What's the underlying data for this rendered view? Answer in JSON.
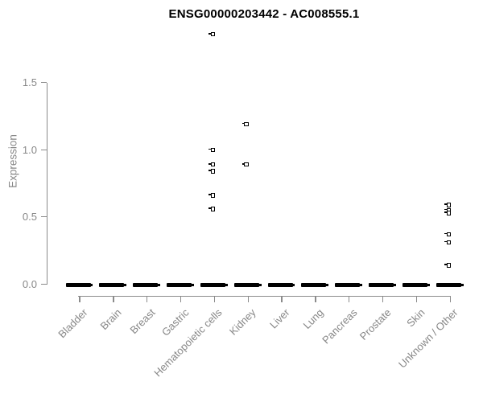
{
  "title": "ENSG00000203442 - AC008555.1",
  "chart_data": {
    "type": "scatter",
    "title": "ENSG00000203442 - AC008555.1",
    "xlabel": "",
    "ylabel": "Expression",
    "ylim": [
      0,
      1.9
    ],
    "yticks": [
      "0.0",
      "0.5",
      "1.0",
      "1.5"
    ],
    "ytick_values": [
      0.0,
      0.5,
      1.0,
      1.5
    ],
    "grid": false,
    "legend": false,
    "marker": "open-square",
    "marker_color": "#000000",
    "axis_color": "#8b8b8b",
    "label_color": "#878787",
    "categories": [
      {
        "label": "Bladder",
        "zero_cluster": true,
        "nonzero_values": []
      },
      {
        "label": "Brain",
        "zero_cluster": true,
        "nonzero_values": []
      },
      {
        "label": "Breast",
        "zero_cluster": true,
        "nonzero_values": []
      },
      {
        "label": "Gastric",
        "zero_cluster": true,
        "nonzero_values": []
      },
      {
        "label": "Hematopoietic cells",
        "zero_cluster": true,
        "nonzero_values": [
          1.86,
          1.0,
          0.89,
          0.84,
          0.66,
          0.56
        ]
      },
      {
        "label": "Kidney",
        "zero_cluster": true,
        "nonzero_values": [
          1.19,
          0.89
        ]
      },
      {
        "label": "Liver",
        "zero_cluster": true,
        "nonzero_values": []
      },
      {
        "label": "Lung",
        "zero_cluster": true,
        "nonzero_values": []
      },
      {
        "label": "Pancreas",
        "zero_cluster": true,
        "nonzero_values": []
      },
      {
        "label": "Prostate",
        "zero_cluster": true,
        "nonzero_values": []
      },
      {
        "label": "Skin",
        "zero_cluster": true,
        "nonzero_values": []
      },
      {
        "label": "Unknown / Other",
        "zero_cluster": true,
        "nonzero_values": [
          0.59,
          0.55,
          0.53,
          0.37,
          0.31,
          0.14
        ]
      }
    ]
  }
}
